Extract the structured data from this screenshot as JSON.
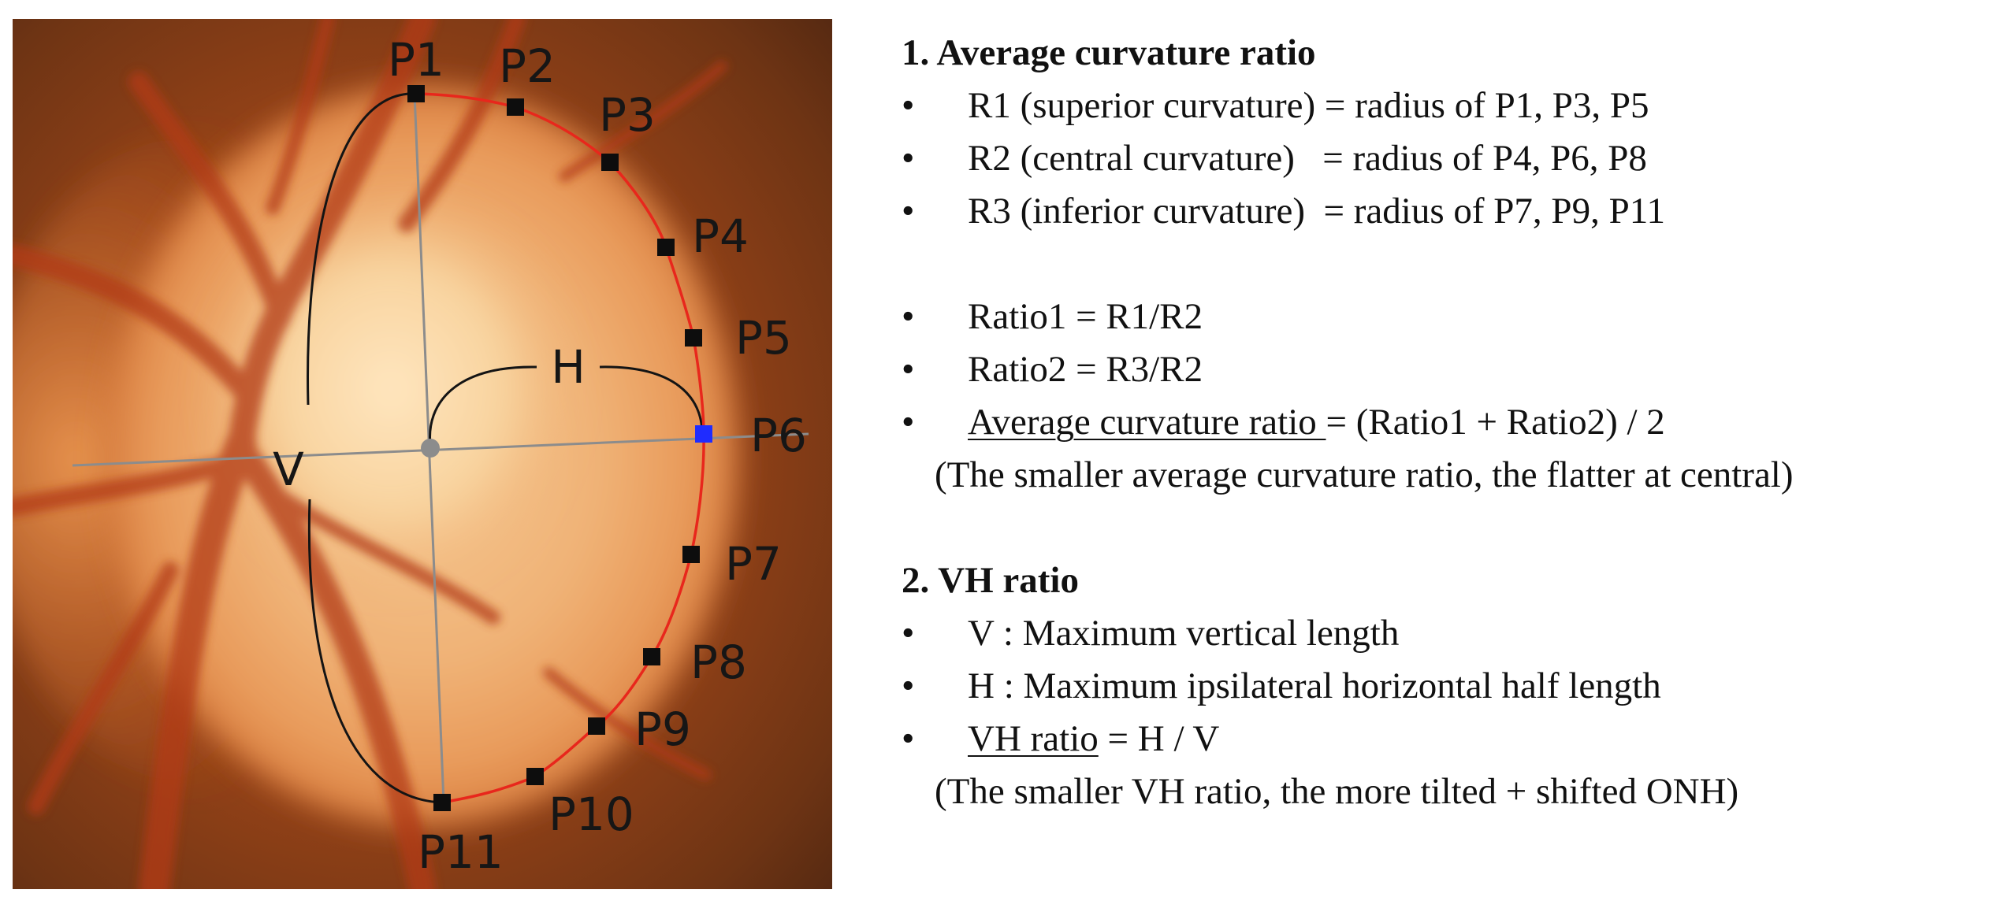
{
  "diagram": {
    "point_labels": [
      "P1",
      "P2",
      "P3",
      "P4",
      "P5",
      "P6",
      "P7",
      "P8",
      "P9",
      "P10",
      "P11"
    ],
    "v_label": "V",
    "h_label": "H",
    "colors": {
      "boundary": "#e8271c",
      "marker": "#0d0d0d",
      "p6_marker": "#1f2cff",
      "axis_lines": "#8c8c8c",
      "brace": "#141414"
    }
  },
  "section1": {
    "heading": "1. Average curvature ratio",
    "bullet": "•",
    "r1": "R1 (superior curvature) = radius of P1, P3, P5",
    "r2": "R2 (central curvature)   = radius of P4, P6, P8",
    "r3": "R3 (inferior curvature)  = radius of P7, P9, P11",
    "ratio1": "Ratio1 = R1/R2",
    "ratio2": "Ratio2 = R3/R2",
    "avg_term": "Average curvature ratio ",
    "avg_formula": "= (Ratio1 + Ratio2) / 2",
    "note": "(The smaller average curvature ratio, the flatter at central)"
  },
  "section2": {
    "heading": "2. VH ratio",
    "bullet": "•",
    "v_def": "V : Maximum vertical length",
    "h_def": "H : Maximum ipsilateral horizontal half length",
    "vh_term": "VH ratio",
    "vh_formula": " = H / V",
    "note": "(The smaller VH ratio, the more tilted + shifted ONH)"
  }
}
